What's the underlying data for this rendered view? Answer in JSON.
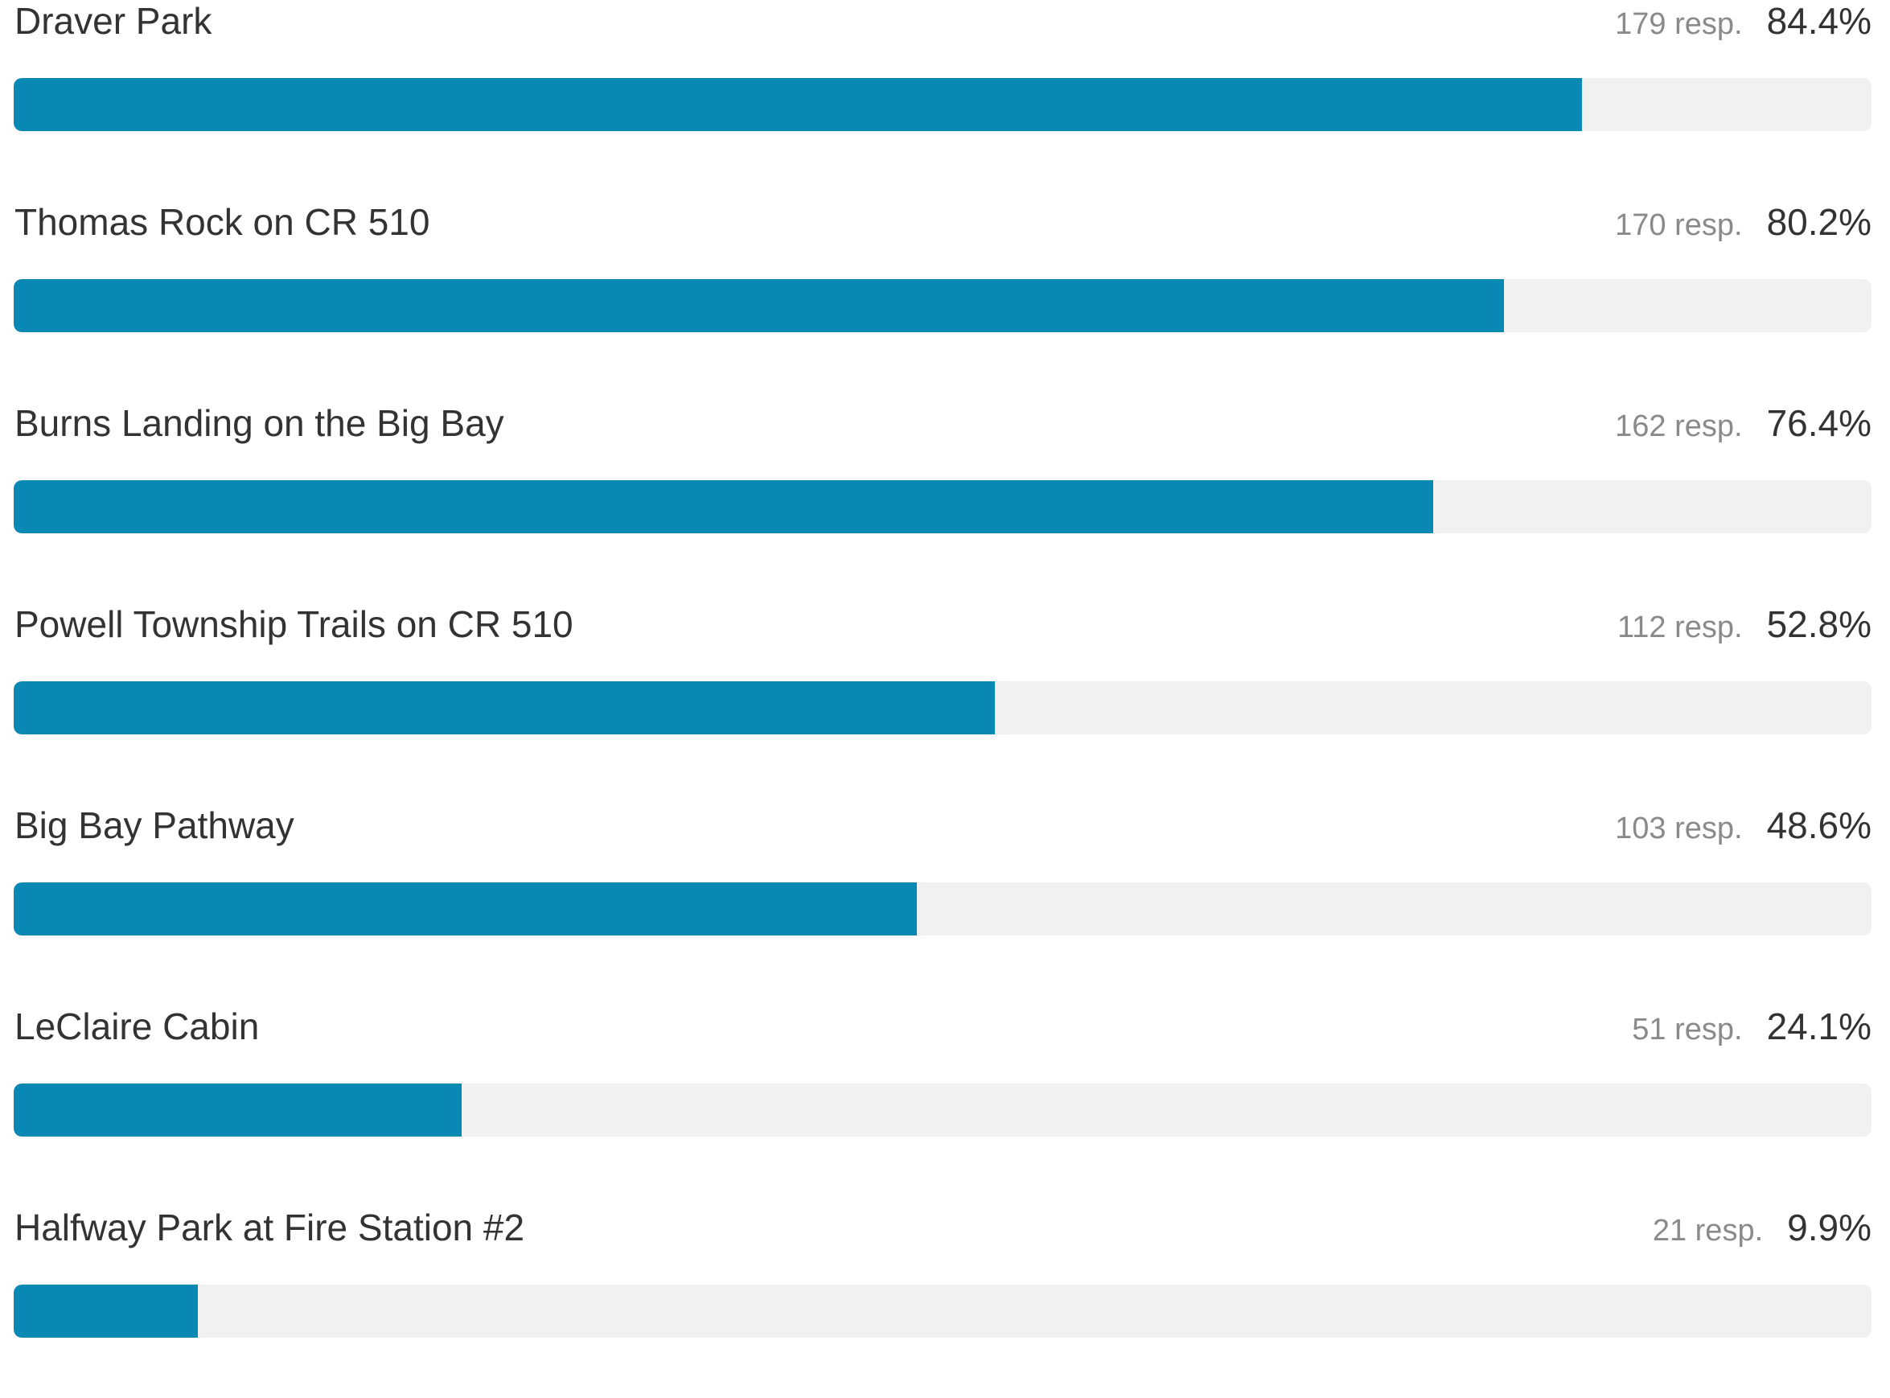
{
  "colors": {
    "bar_fill": "#0888b2",
    "bar_track": "#f1f1f1",
    "label_text": "#333333",
    "resp_text": "#8a8a8a"
  },
  "chart_data": {
    "type": "bar",
    "orientation": "horizontal",
    "xlim": [
      0,
      100
    ],
    "categories": [
      "Draver Park",
      "Thomas Rock on CR 510",
      "Burns Landing on the Big Bay",
      "Powell Township Trails on CR 510",
      "Big Bay Pathway",
      "LeClaire Cabin",
      "Halfway Park at Fire Station #2"
    ],
    "values": [
      84.4,
      80.2,
      76.4,
      52.8,
      48.6,
      24.1,
      9.9
    ],
    "responses_text": [
      "179 resp.",
      "170 resp.",
      "162 resp.",
      "112 resp.",
      "103 resp.",
      "51 resp.",
      "21 resp."
    ],
    "percent_text": [
      "84.4%",
      "80.2%",
      "76.4%",
      "52.8%",
      "48.6%",
      "24.1%",
      "9.9%"
    ]
  }
}
